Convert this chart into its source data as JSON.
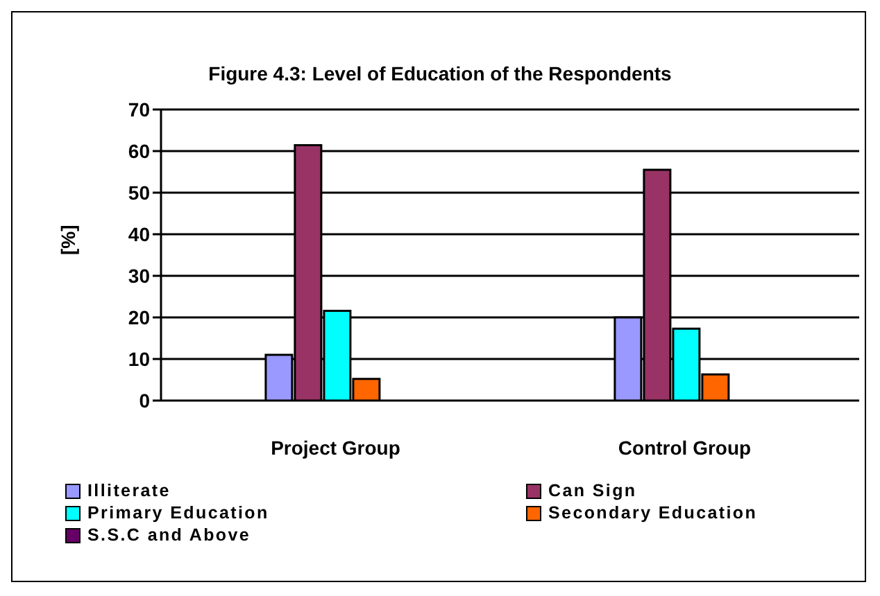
{
  "chart_data": {
    "type": "bar",
    "title": "Figure 4.3: Level of Education of the Respondents",
    "ylabel": "[%]",
    "categories": [
      "Project Group",
      "Control Group"
    ],
    "series": [
      {
        "name": "Illiterate",
        "color": "#9999ff",
        "values": [
          11,
          20
        ]
      },
      {
        "name": "Can Sign",
        "color": "#993366",
        "values": [
          61.4,
          55.5
        ]
      },
      {
        "name": "Primary Education",
        "color": "#00ffff",
        "values": [
          21.6,
          17.3
        ]
      },
      {
        "name": "Secondary Education",
        "color": "#ff6600",
        "values": [
          5.2,
          6.3
        ]
      },
      {
        "name": "S.S.C and Above",
        "color": "#660066",
        "values": [
          0,
          0
        ]
      }
    ],
    "ylim": [
      0,
      70
    ],
    "yticks": [
      0,
      10,
      20,
      30,
      40,
      50,
      60,
      70
    ],
    "grid": "y",
    "legend": "bottom"
  }
}
